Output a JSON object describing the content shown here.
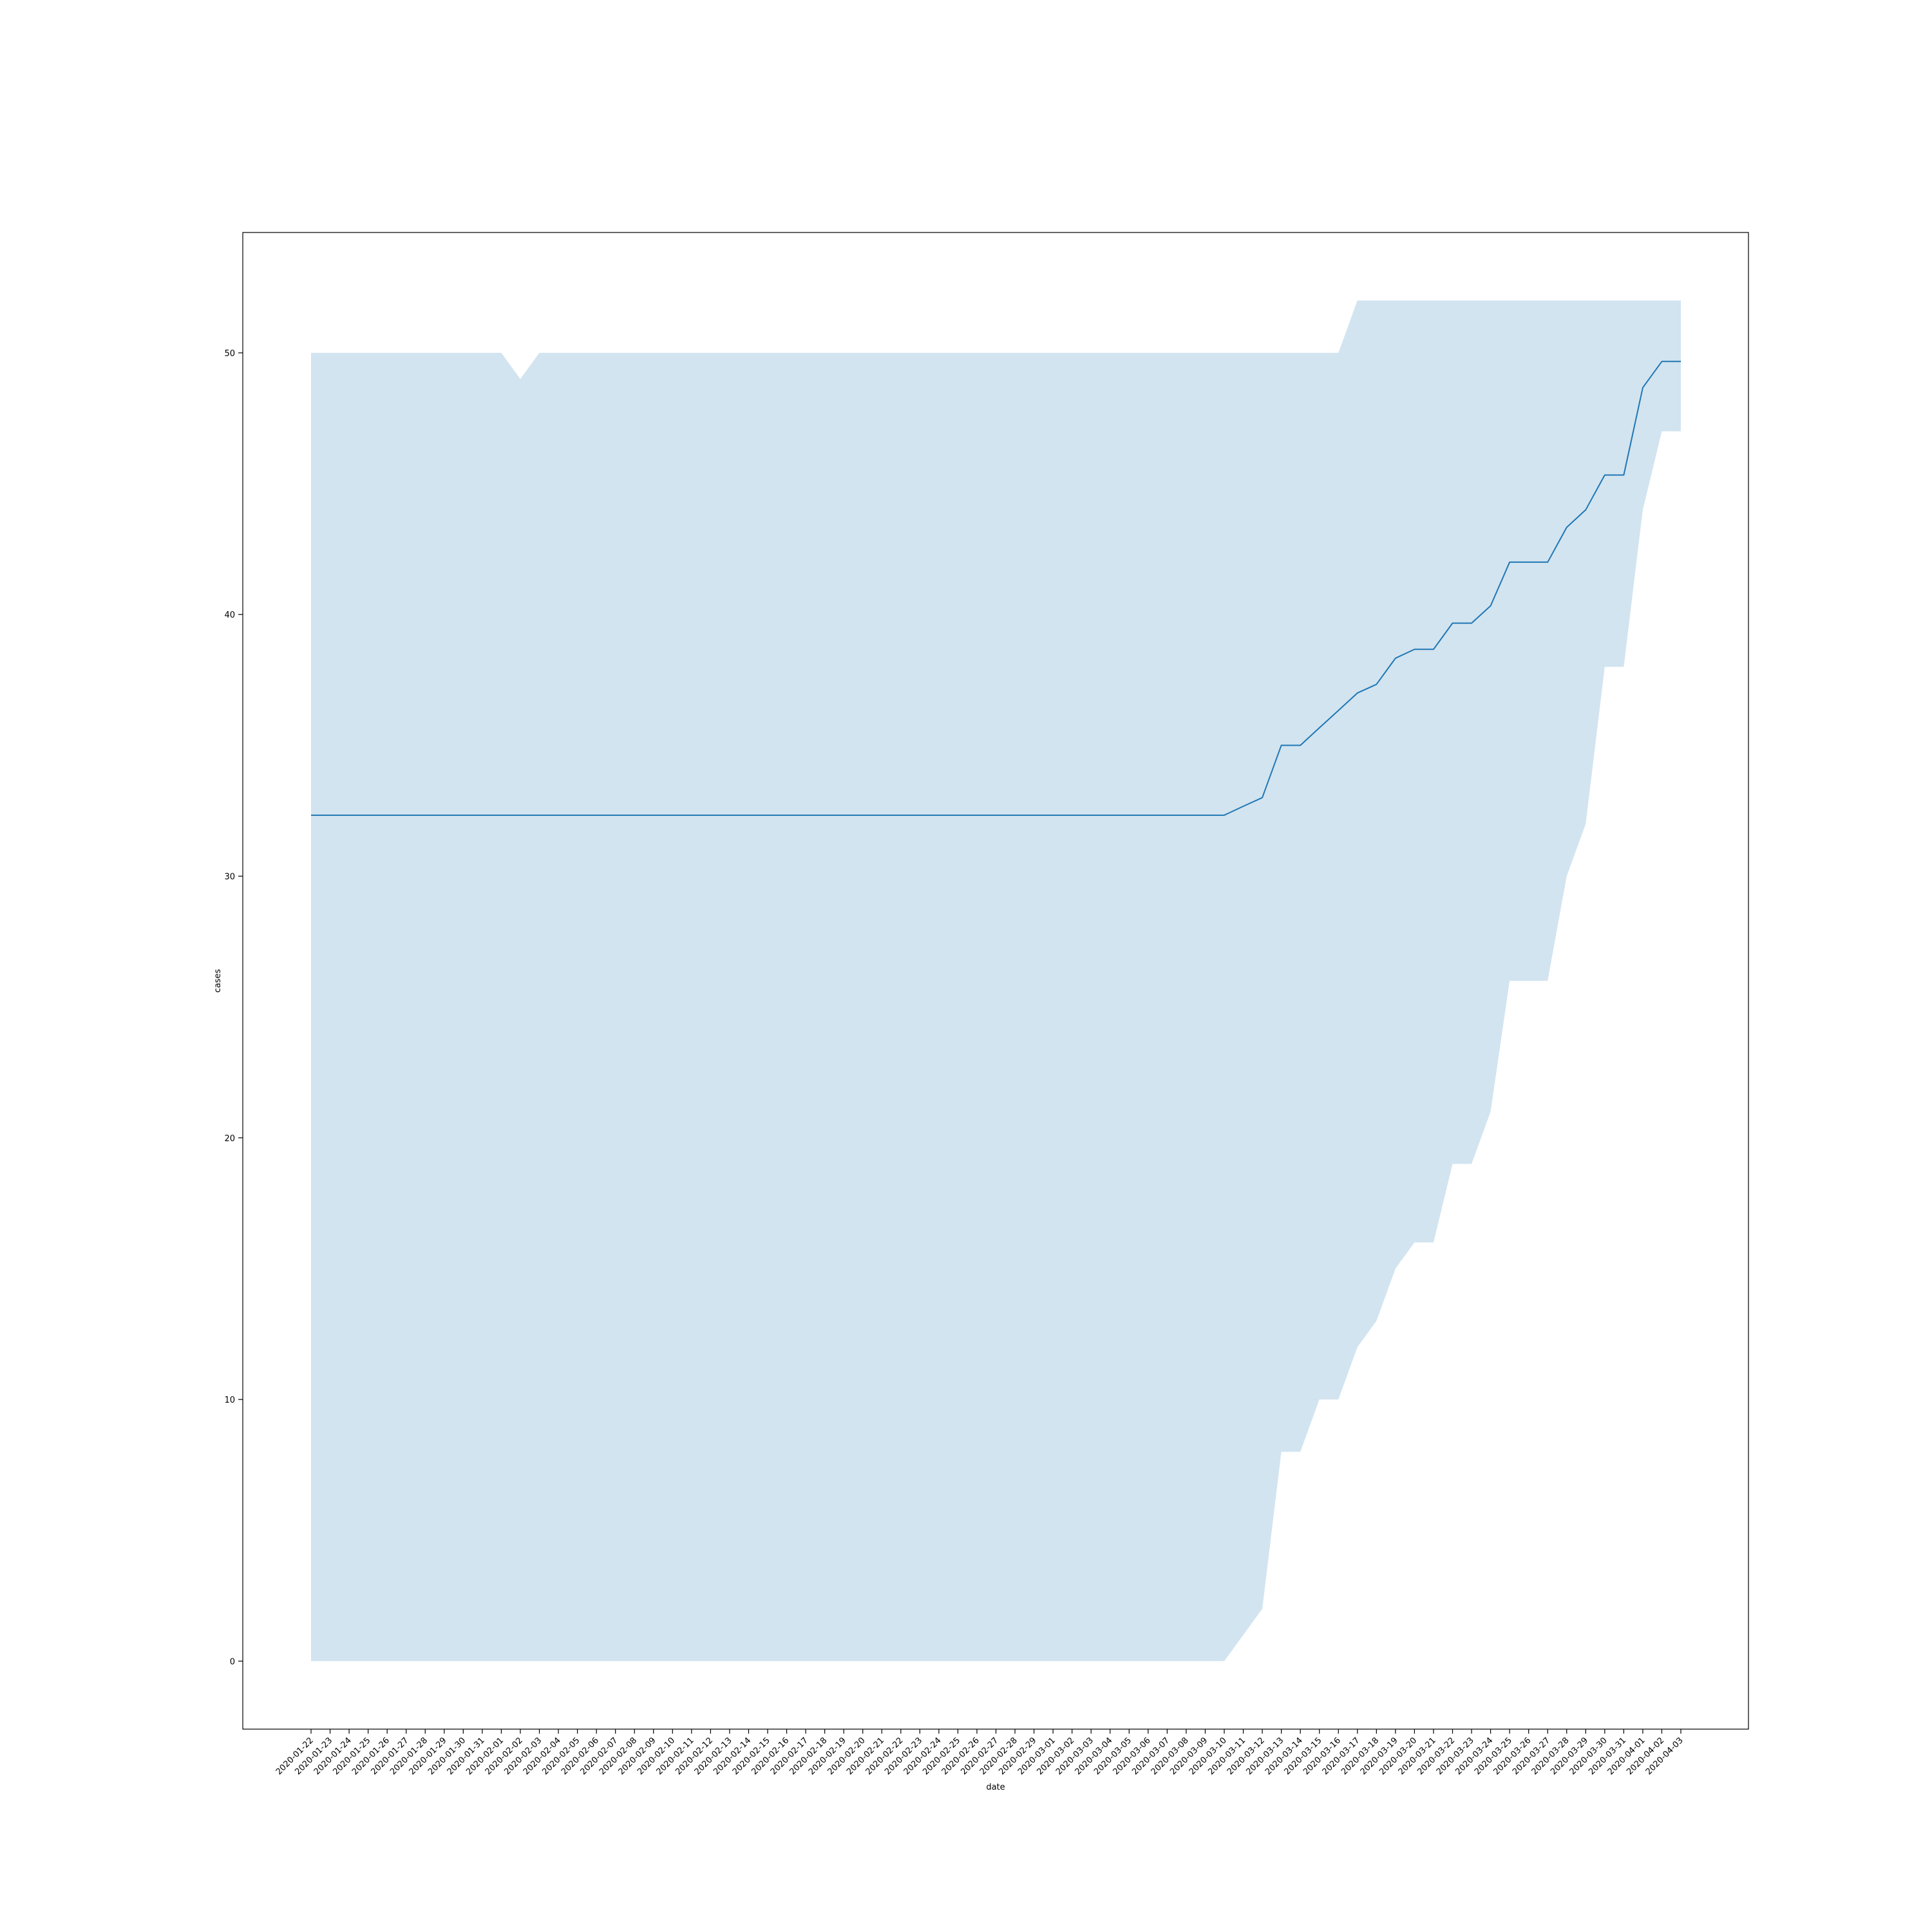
{
  "chart_data": {
    "type": "line",
    "title": "",
    "xlabel": "date",
    "ylabel": "cases",
    "ylim": [
      -2.6,
      54.6
    ],
    "y_ticks": [
      0,
      10,
      20,
      30,
      40,
      50
    ],
    "grid": false,
    "legend": "none",
    "x": [
      "2020-01-22",
      "2020-01-23",
      "2020-01-24",
      "2020-01-25",
      "2020-01-26",
      "2020-01-27",
      "2020-01-28",
      "2020-01-29",
      "2020-01-30",
      "2020-01-31",
      "2020-02-01",
      "2020-02-02",
      "2020-02-03",
      "2020-02-04",
      "2020-02-05",
      "2020-02-06",
      "2020-02-07",
      "2020-02-08",
      "2020-02-09",
      "2020-02-10",
      "2020-02-11",
      "2020-02-12",
      "2020-02-13",
      "2020-02-14",
      "2020-02-15",
      "2020-02-16",
      "2020-02-17",
      "2020-02-18",
      "2020-02-19",
      "2020-02-20",
      "2020-02-21",
      "2020-02-22",
      "2020-02-23",
      "2020-02-24",
      "2020-02-25",
      "2020-02-26",
      "2020-02-27",
      "2020-02-28",
      "2020-02-29",
      "2020-03-01",
      "2020-03-02",
      "2020-03-03",
      "2020-03-04",
      "2020-03-05",
      "2020-03-06",
      "2020-03-07",
      "2020-03-08",
      "2020-03-09",
      "2020-03-10",
      "2020-03-11",
      "2020-03-12",
      "2020-03-13",
      "2020-03-14",
      "2020-03-15",
      "2020-03-16",
      "2020-03-17",
      "2020-03-18",
      "2020-03-19",
      "2020-03-20",
      "2020-03-21",
      "2020-03-22",
      "2020-03-23",
      "2020-03-24",
      "2020-03-25",
      "2020-03-26",
      "2020-03-27",
      "2020-03-28",
      "2020-03-29",
      "2020-03-30",
      "2020-03-31",
      "2020-04-01",
      "2020-04-02",
      "2020-04-03"
    ],
    "series": [
      {
        "values": [
          32.33,
          32.33,
          32.33,
          32.33,
          32.33,
          32.33,
          32.33,
          32.33,
          32.33,
          32.33,
          32.33,
          32.33,
          32.33,
          32.33,
          32.33,
          32.33,
          32.33,
          32.33,
          32.33,
          32.33,
          32.33,
          32.33,
          32.33,
          32.33,
          32.33,
          32.33,
          32.33,
          32.33,
          32.33,
          32.33,
          32.33,
          32.33,
          32.33,
          32.33,
          32.33,
          32.33,
          32.33,
          32.33,
          32.33,
          32.33,
          32.33,
          32.33,
          32.33,
          32.33,
          32.33,
          32.33,
          32.33,
          32.33,
          32.33,
          32.67,
          33.0,
          35.0,
          35.0,
          35.67,
          36.33,
          37.0,
          37.33,
          38.33,
          38.67,
          38.67,
          39.67,
          39.67,
          40.33,
          42.0,
          42.0,
          42.0,
          43.33,
          44.0,
          45.33,
          45.33,
          48.67,
          49.67,
          49.67
        ],
        "ci_lower": [
          0,
          0,
          0,
          0,
          0,
          0,
          0,
          0,
          0,
          0,
          0,
          0,
          0,
          0,
          0,
          0,
          0,
          0,
          0,
          0,
          0,
          0,
          0,
          0,
          0,
          0,
          0,
          0,
          0,
          0,
          0,
          0,
          0,
          0,
          0,
          0,
          0,
          0,
          0,
          0,
          0,
          0,
          0,
          0,
          0,
          0,
          0,
          0,
          0,
          1,
          2,
          8,
          8,
          10,
          10,
          12,
          13,
          15,
          16,
          16,
          19,
          19,
          21,
          26,
          26,
          26,
          30,
          32,
          38,
          38,
          44,
          47,
          47
        ],
        "ci_upper": [
          50,
          50,
          50,
          50,
          50,
          50,
          50,
          50,
          50,
          50,
          50,
          49,
          50,
          50,
          50,
          50,
          50,
          50,
          50,
          50,
          50,
          50,
          50,
          50,
          50,
          50,
          50,
          50,
          50,
          50,
          50,
          50,
          50,
          50,
          50,
          50,
          50,
          50,
          50,
          50,
          50,
          50,
          50,
          50,
          50,
          50,
          50,
          50,
          50,
          50,
          50,
          50,
          50,
          50,
          50,
          52,
          52,
          52,
          52,
          52,
          52,
          52,
          52,
          52,
          52,
          52,
          52,
          52,
          52,
          52,
          52,
          52,
          52
        ],
        "line_color": "#1f77b4",
        "band_color": "#1f77b4"
      }
    ]
  }
}
